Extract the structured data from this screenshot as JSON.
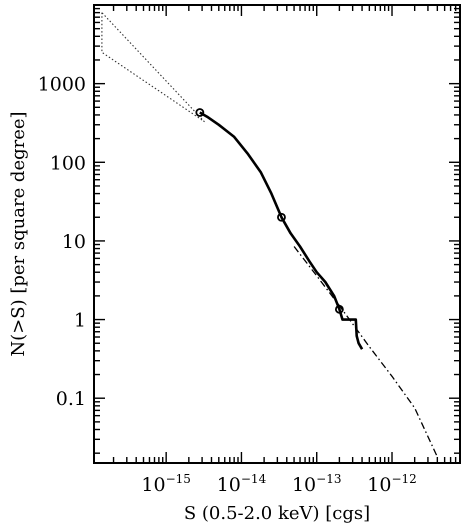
{
  "chart_data": {
    "type": "line",
    "title": "",
    "xlabel": "S (0.5-2.0 keV) [cgs]",
    "ylabel": "N(>S)  [per square degree]",
    "x_scale": "log",
    "y_scale": "log",
    "xlim": [
      1.1e-16,
      8e-12
    ],
    "ylim": [
      0.015,
      10000
    ],
    "x_ticks": [
      {
        "value": 1e-15,
        "base": "10",
        "exp": "−15"
      },
      {
        "value": 1e-14,
        "base": "10",
        "exp": "−14"
      },
      {
        "value": 1e-13,
        "base": "10",
        "exp": "−13"
      },
      {
        "value": 1e-12,
        "base": "10",
        "exp": "−12"
      }
    ],
    "y_ticks": [
      {
        "value": 1000,
        "label": "1000"
      },
      {
        "value": 100,
        "label": "100"
      },
      {
        "value": 10,
        "label": "10"
      },
      {
        "value": 1,
        "label": "1"
      },
      {
        "value": 0.1,
        "label": "0.1"
      }
    ],
    "grid": false,
    "series": [
      {
        "style": "solid-thick",
        "x": [
          2.8e-15,
          3.5e-15,
          5e-15,
          8e-15,
          1.2e-14,
          1.8e-14,
          2.5e-14,
          3.4e-14,
          4.5e-14,
          6e-14,
          8e-14,
          1e-13,
          1.3e-13,
          1.7e-13,
          2e-13,
          2.2e-13,
          2.8e-13,
          3.2e-13,
          3.3e-13,
          3.4e-13,
          3.6e-13,
          4e-13
        ],
        "y": [
          430,
          380,
          300,
          210,
          130,
          75,
          40,
          20,
          12.5,
          8.5,
          5.5,
          4.0,
          3.0,
          2.0,
          1.35,
          1.0,
          1.0,
          1.0,
          1.0,
          0.62,
          0.5,
          0.42
        ]
      },
      {
        "style": "dash-dot",
        "x": [
          5e-14,
          1e-13,
          2e-13,
          5e-13,
          1e-12,
          2e-12,
          4e-12
        ],
        "y": [
          8.5,
          3.6,
          1.5,
          0.45,
          0.19,
          0.075,
          0.018
        ]
      },
      {
        "style": "dotted",
        "x": [
          1.4e-16,
          1.4e-16,
          3.2e-15,
          1.4e-16
        ],
        "y": [
          8000,
          2500,
          330,
          8000
        ]
      }
    ],
    "markers": [
      {
        "x": 2.8e-15,
        "y": 430
      },
      {
        "x": 3.4e-14,
        "y": 20
      },
      {
        "x": 2e-13,
        "y": 1.35
      }
    ]
  }
}
